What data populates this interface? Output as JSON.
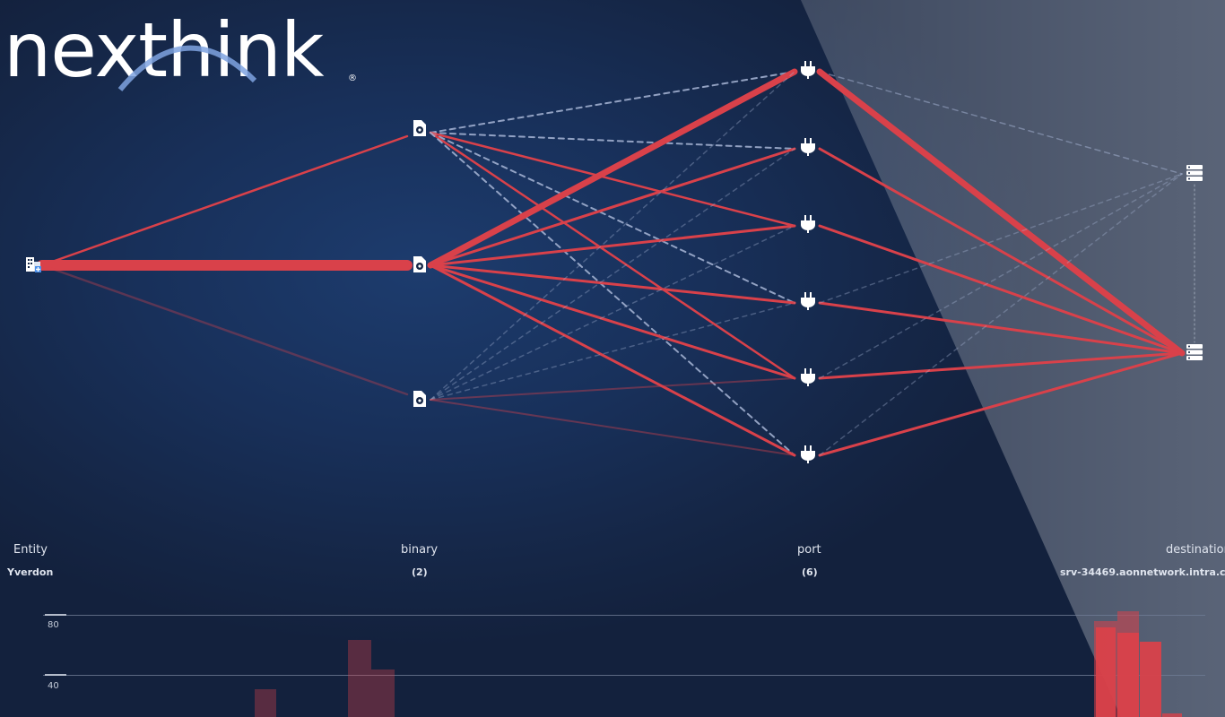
{
  "logo": {
    "text": "nexthink",
    "registered": "®"
  },
  "columns": [
    {
      "label": "Entity",
      "value": "Yverdon"
    },
    {
      "label": "binary",
      "value": "(2)"
    },
    {
      "label": "port",
      "value": "(6)"
    },
    {
      "label": "destination",
      "value": "srv-34469.aonnetwork.intra.c"
    }
  ],
  "chart": {
    "ticks": [
      "80",
      "40"
    ],
    "bar_color": "#d9414a"
  },
  "colors": {
    "link": "#d9414a",
    "dashed": "#a8b6d6",
    "background": "#152646"
  },
  "icons": {
    "entity": "office-building-icon",
    "binary": "gear-file-icon",
    "port": "plug-icon",
    "destination": "server-icon"
  }
}
